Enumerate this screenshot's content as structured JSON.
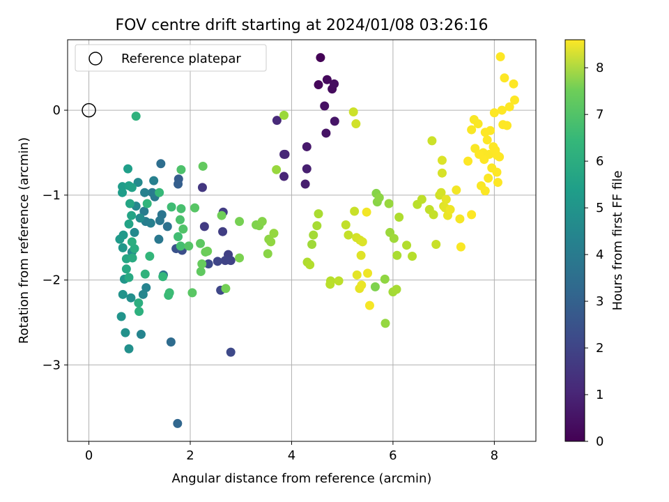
{
  "chart_data": {
    "type": "scatter",
    "title": "FOV centre drift starting at 2024/01/08 03:26:16",
    "xlabel": "Angular distance from reference (arcmin)",
    "ylabel": "Rotation from reference (arcmin)",
    "xlim": [
      -0.42,
      8.82
    ],
    "ylim": [
      -3.9,
      0.83
    ],
    "xticks": [
      0,
      2,
      4,
      6,
      8
    ],
    "yticks": [
      0,
      -1,
      -2,
      -3
    ],
    "xtick_labels": [
      "0",
      "2",
      "4",
      "6",
      "8"
    ],
    "ytick_labels": [
      "0",
      "−1",
      "−2",
      "−3"
    ],
    "grid": true,
    "legend": {
      "placement": "top-left",
      "entries": [
        "Reference platepar"
      ]
    },
    "reference_point": {
      "label": "Reference platepar",
      "x": 0,
      "y": 0
    },
    "colorbar": {
      "label": "Hours from first FF file",
      "colormap": "viridis",
      "range": [
        0,
        8.6
      ],
      "ticks": [
        0,
        1,
        2,
        3,
        4,
        5,
        6,
        7,
        8
      ],
      "tick_labels": [
        "0",
        "1",
        "2",
        "3",
        "4",
        "5",
        "6",
        "7",
        "8"
      ]
    },
    "series": [
      {
        "columns": [
          "x",
          "y",
          "hours"
        ],
        "points": [
          [
            4.57,
            0.62,
            0.05
          ],
          [
            4.53,
            0.3,
            0.15
          ],
          [
            4.7,
            0.36,
            0.2
          ],
          [
            4.8,
            0.25,
            0.25
          ],
          [
            4.84,
            0.31,
            0.3
          ],
          [
            4.65,
            0.05,
            0.4
          ],
          [
            4.68,
            -0.27,
            0.45
          ],
          [
            4.85,
            -0.13,
            0.5
          ],
          [
            4.3,
            -0.43,
            0.6
          ],
          [
            4.27,
            -0.87,
            0.7
          ],
          [
            4.3,
            -0.69,
            0.75
          ],
          [
            3.87,
            -0.52,
            0.85
          ],
          [
            3.85,
            -0.78,
            0.9
          ],
          [
            3.85,
            -0.52,
            0.95
          ],
          [
            3.71,
            -0.12,
            1.0
          ],
          [
            2.24,
            -0.91,
            1.4
          ],
          [
            2.28,
            -1.37,
            1.5
          ],
          [
            2.65,
            -1.2,
            1.55
          ],
          [
            2.64,
            -1.43,
            1.6
          ],
          [
            2.75,
            -1.7,
            1.65
          ],
          [
            2.8,
            -1.77,
            1.7
          ],
          [
            2.69,
            -1.77,
            1.75
          ],
          [
            2.54,
            -1.78,
            1.8
          ],
          [
            2.6,
            -2.12,
            1.85
          ],
          [
            2.8,
            -2.85,
            1.9
          ],
          [
            2.36,
            -1.81,
            1.95
          ],
          [
            1.84,
            -1.65,
            2.05
          ],
          [
            1.72,
            -1.63,
            2.2
          ],
          [
            1.77,
            -0.81,
            2.5
          ],
          [
            1.76,
            -0.87,
            2.6
          ],
          [
            1.75,
            -3.69,
            2.85
          ],
          [
            1.62,
            -2.73,
            3.0
          ],
          [
            1.42,
            -0.63,
            3.1
          ],
          [
            1.47,
            -1.94,
            3.15
          ],
          [
            1.55,
            -1.37,
            3.25
          ],
          [
            1.44,
            -1.23,
            3.35
          ],
          [
            1.4,
            -1.3,
            3.4
          ],
          [
            1.38,
            -1.52,
            3.45
          ],
          [
            1.3,
            -1.02,
            3.5
          ],
          [
            1.25,
            -0.97,
            3.55
          ],
          [
            1.09,
            -1.19,
            3.6
          ],
          [
            1.12,
            -1.31,
            3.65
          ],
          [
            1.22,
            -1.33,
            3.7
          ],
          [
            1.28,
            -0.83,
            3.75
          ],
          [
            1.1,
            -0.97,
            3.8
          ],
          [
            1.13,
            -2.09,
            3.85
          ],
          [
            1.03,
            -2.64,
            3.9
          ],
          [
            1.07,
            -2.17,
            3.95
          ],
          [
            0.93,
            -1.13,
            4.0
          ],
          [
            0.9,
            -1.44,
            4.05
          ],
          [
            0.97,
            -0.85,
            4.1
          ],
          [
            1.01,
            -1.27,
            4.15
          ],
          [
            0.85,
            -1.67,
            4.2
          ],
          [
            0.83,
            -2.21,
            4.25
          ],
          [
            0.79,
            -2.81,
            4.3
          ],
          [
            0.72,
            -2.62,
            4.35
          ],
          [
            0.67,
            -2.17,
            4.4
          ],
          [
            0.64,
            -2.43,
            4.45
          ],
          [
            0.7,
            -1.99,
            4.5
          ],
          [
            0.67,
            -1.62,
            4.55
          ],
          [
            0.68,
            -1.47,
            4.6
          ],
          [
            0.61,
            -1.52,
            4.65
          ],
          [
            0.66,
            -0.9,
            4.7
          ],
          [
            0.66,
            -0.97,
            4.75
          ],
          [
            0.77,
            -0.69,
            4.8
          ],
          [
            0.79,
            -0.89,
            4.85
          ],
          [
            0.85,
            -0.91,
            4.9
          ],
          [
            0.79,
            -1.34,
            4.95
          ],
          [
            0.84,
            -1.24,
            5.0
          ],
          [
            0.81,
            -1.1,
            5.05
          ],
          [
            0.74,
            -1.75,
            5.1
          ],
          [
            0.74,
            -1.87,
            5.15
          ],
          [
            0.79,
            -1.97,
            5.2
          ],
          [
            0.86,
            -1.74,
            5.25
          ],
          [
            0.9,
            -1.63,
            5.3
          ],
          [
            0.85,
            -1.55,
            5.35
          ],
          [
            0.98,
            -2.27,
            5.4
          ],
          [
            0.99,
            -2.37,
            5.45
          ],
          [
            0.93,
            -0.07,
            5.5
          ],
          [
            1.11,
            -1.93,
            5.55
          ],
          [
            1.15,
            -1.1,
            5.6
          ],
          [
            1.2,
            -1.72,
            5.65
          ],
          [
            1.46,
            -1.96,
            5.7
          ],
          [
            1.39,
            -0.97,
            5.75
          ],
          [
            1.57,
            -2.18,
            5.8
          ],
          [
            1.59,
            -2.15,
            5.85
          ],
          [
            1.63,
            -1.14,
            5.9
          ],
          [
            1.76,
            -1.49,
            5.95
          ],
          [
            1.81,
            -1.6,
            6.0
          ],
          [
            1.82,
            -1.16,
            6.05
          ],
          [
            1.8,
            -1.29,
            6.1
          ],
          [
            1.82,
            -0.7,
            6.15
          ],
          [
            1.86,
            -1.4,
            6.2
          ],
          [
            1.97,
            -1.6,
            6.25
          ],
          [
            2.09,
            -1.15,
            6.3
          ],
          [
            2.04,
            -2.15,
            6.35
          ],
          [
            2.2,
            -1.57,
            6.4
          ],
          [
            2.21,
            -1.9,
            6.45
          ],
          [
            2.25,
            -0.66,
            6.5
          ],
          [
            2.23,
            -1.81,
            6.55
          ],
          [
            2.3,
            -1.67,
            6.6
          ],
          [
            2.34,
            -1.66,
            6.65
          ],
          [
            2.62,
            -1.24,
            6.7
          ],
          [
            2.7,
            -2.1,
            6.75
          ],
          [
            2.97,
            -1.31,
            6.8
          ],
          [
            2.97,
            -1.74,
            6.85
          ],
          [
            3.3,
            -1.35,
            6.9
          ],
          [
            3.36,
            -1.36,
            6.95
          ],
          [
            3.42,
            -1.31,
            7.0
          ],
          [
            3.53,
            -1.69,
            7.05
          ],
          [
            3.55,
            -1.52,
            7.1
          ],
          [
            3.59,
            -1.55,
            7.15
          ],
          [
            3.65,
            -1.45,
            7.2
          ],
          [
            3.7,
            -0.7,
            7.25
          ],
          [
            3.85,
            -0.06,
            7.3
          ],
          [
            4.4,
            -1.58,
            7.35
          ],
          [
            4.43,
            -1.47,
            7.4
          ],
          [
            4.5,
            -1.36,
            7.45
          ],
          [
            4.53,
            -1.22,
            7.5
          ],
          [
            4.31,
            -1.79,
            7.55
          ],
          [
            4.36,
            -1.82,
            7.6
          ],
          [
            4.77,
            -2.01,
            7.65
          ],
          [
            4.76,
            -2.05,
            7.7
          ],
          [
            4.93,
            -2.01,
            7.75
          ],
          [
            5.07,
            -1.35,
            7.8
          ],
          [
            5.12,
            -1.47,
            7.85
          ],
          [
            5.24,
            -1.19,
            7.9
          ],
          [
            5.22,
            -0.02,
            7.95
          ],
          [
            5.27,
            -0.16,
            8.0
          ],
          [
            5.28,
            -1.5,
            8.05
          ],
          [
            5.35,
            -1.53,
            8.1
          ],
          [
            5.4,
            -1.55,
            8.15
          ],
          [
            5.37,
            -1.71,
            8.2
          ],
          [
            5.29,
            -1.94,
            8.25
          ],
          [
            5.34,
            -2.1,
            8.3
          ],
          [
            5.38,
            -2.06,
            8.35
          ],
          [
            5.5,
            -1.92,
            8.4
          ],
          [
            5.48,
            -1.2,
            8.45
          ],
          [
            5.54,
            -2.3,
            8.5
          ]
        ]
      },
      {
        "columns": [
          "x",
          "y",
          "hours"
        ],
        "points": [
          [
            5.65,
            -2.08,
            6.9
          ],
          [
            5.67,
            -0.98,
            7.0
          ],
          [
            5.69,
            -1.08,
            7.05
          ],
          [
            5.73,
            -1.03,
            7.1
          ],
          [
            5.84,
            -1.99,
            7.15
          ],
          [
            5.85,
            -2.51,
            7.2
          ],
          [
            5.92,
            -1.1,
            7.25
          ],
          [
            5.94,
            -1.44,
            7.3
          ],
          [
            6.02,
            -1.51,
            7.35
          ],
          [
            6.0,
            -2.14,
            7.4
          ],
          [
            6.07,
            -2.11,
            7.45
          ],
          [
            6.08,
            -1.71,
            7.5
          ],
          [
            6.12,
            -1.26,
            7.55
          ],
          [
            6.27,
            -1.59,
            7.6
          ],
          [
            6.38,
            -1.72,
            7.65
          ],
          [
            6.48,
            -1.11,
            7.7
          ],
          [
            6.57,
            -1.05,
            7.75
          ],
          [
            6.72,
            -1.17,
            7.8
          ],
          [
            6.8,
            -1.23,
            7.85
          ],
          [
            6.85,
            -1.58,
            7.9
          ],
          [
            6.77,
            -0.36,
            7.95
          ],
          [
            6.92,
            -1.0,
            8.0
          ],
          [
            6.95,
            -0.97,
            8.05
          ],
          [
            6.97,
            -0.74,
            8.1
          ],
          [
            6.97,
            -0.59,
            8.15
          ],
          [
            7.0,
            -1.13,
            8.2
          ],
          [
            7.03,
            -1.15,
            8.25
          ],
          [
            7.05,
            -1.05,
            8.3
          ],
          [
            7.08,
            -1.24,
            8.35
          ],
          [
            7.13,
            -1.17,
            8.4
          ],
          [
            7.25,
            -0.94,
            8.45
          ],
          [
            7.32,
            -1.28,
            8.5
          ],
          [
            7.34,
            -1.61,
            8.55
          ],
          [
            7.55,
            -1.23,
            8.6
          ],
          [
            7.48,
            -0.6,
            8.6
          ]
        ]
      },
      {
        "columns": [
          "x",
          "y",
          "hours"
        ],
        "points": [
          [
            7.55,
            -0.23,
            8.55
          ],
          [
            7.6,
            -0.11,
            8.55
          ],
          [
            7.62,
            -0.45,
            8.55
          ],
          [
            7.68,
            -0.16,
            8.55
          ],
          [
            7.74,
            -0.89,
            8.55
          ],
          [
            7.78,
            -0.5,
            8.58
          ],
          [
            7.82,
            -0.95,
            8.58
          ],
          [
            7.88,
            -0.8,
            8.58
          ],
          [
            7.9,
            -0.52,
            8.58
          ],
          [
            7.95,
            -0.68,
            8.58
          ],
          [
            8.0,
            -0.03,
            8.6
          ],
          [
            8.02,
            -0.47,
            8.6
          ],
          [
            8.05,
            -0.53,
            8.6
          ],
          [
            8.07,
            -0.85,
            8.6
          ],
          [
            8.1,
            -0.55,
            8.6
          ],
          [
            8.12,
            0.63,
            8.6
          ],
          [
            8.17,
            -0.17,
            8.6
          ],
          [
            8.2,
            0.38,
            8.6
          ],
          [
            8.25,
            -0.18,
            8.6
          ],
          [
            8.38,
            0.31,
            8.6
          ],
          [
            8.4,
            0.12,
            8.6
          ],
          [
            8.3,
            0.04,
            8.6
          ],
          [
            8.15,
            0.0,
            8.6
          ],
          [
            7.92,
            -0.24,
            8.6
          ],
          [
            8.05,
            -0.73,
            8.6
          ],
          [
            7.98,
            -0.43,
            8.6
          ],
          [
            7.86,
            -0.35,
            8.6
          ],
          [
            7.82,
            -0.26,
            8.6
          ],
          [
            7.7,
            -0.52,
            8.6
          ],
          [
            7.8,
            -0.58,
            8.6
          ]
        ]
      }
    ]
  }
}
